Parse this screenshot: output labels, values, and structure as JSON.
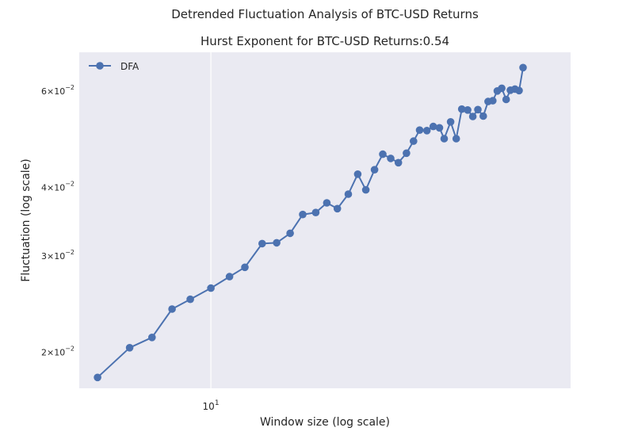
{
  "chart_data": {
    "type": "line",
    "suptitle": "Detrended Fluctuation Analysis of BTC-USD Returns",
    "title": "Hurst Exponent for BTC-USD Returns:0.54",
    "xlabel": "Window size (log scale)",
    "ylabel": "Fluctuation (log scale)",
    "xscale": "log",
    "yscale": "log",
    "xlim": [
      5.1,
      63
    ],
    "ylim": [
      0.0172,
      0.0706
    ],
    "x_ticks": [
      {
        "value": 10,
        "base": "10",
        "exp": "1"
      }
    ],
    "y_ticks": [
      {
        "value": 0.02,
        "mant": "2",
        "exp": "−2"
      },
      {
        "value": 0.03,
        "mant": "3",
        "exp": "−2"
      },
      {
        "value": 0.04,
        "mant": "4",
        "exp": "−2"
      },
      {
        "value": 0.06,
        "mant": "6",
        "exp": "−2"
      }
    ],
    "grid": true,
    "legend_position": "top-left",
    "series": [
      {
        "name": "DFA",
        "color": "#4c72b0",
        "marker": "circle",
        "points": [
          [
            5.6,
            0.018
          ],
          [
            6.6,
            0.0204
          ],
          [
            7.4,
            0.0213
          ],
          [
            8.2,
            0.024
          ],
          [
            9.0,
            0.025
          ],
          [
            10.0,
            0.0262
          ],
          [
            11.0,
            0.0275
          ],
          [
            11.9,
            0.0286
          ],
          [
            13.0,
            0.0316
          ],
          [
            14.0,
            0.0317
          ],
          [
            15.0,
            0.033
          ],
          [
            16.0,
            0.0357
          ],
          [
            17.1,
            0.036
          ],
          [
            18.1,
            0.0375
          ],
          [
            19.1,
            0.0366
          ],
          [
            20.2,
            0.0389
          ],
          [
            21.2,
            0.0423
          ],
          [
            22.1,
            0.0396
          ],
          [
            23.1,
            0.0431
          ],
          [
            24.1,
            0.046
          ],
          [
            25.1,
            0.0452
          ],
          [
            26.1,
            0.0444
          ],
          [
            27.2,
            0.0462
          ],
          [
            28.2,
            0.0486
          ],
          [
            29.1,
            0.0509
          ],
          [
            30.2,
            0.0508
          ],
          [
            31.2,
            0.0517
          ],
          [
            32.2,
            0.0514
          ],
          [
            33.0,
            0.0491
          ],
          [
            34.1,
            0.0527
          ],
          [
            35.1,
            0.0491
          ],
          [
            36.1,
            0.0556
          ],
          [
            37.2,
            0.0554
          ],
          [
            38.2,
            0.0539
          ],
          [
            39.2,
            0.0555
          ],
          [
            40.3,
            0.054
          ],
          [
            41.3,
            0.0574
          ],
          [
            42.3,
            0.0576
          ],
          [
            43.3,
            0.06
          ],
          [
            44.3,
            0.0607
          ],
          [
            45.3,
            0.0579
          ],
          [
            46.3,
            0.0602
          ],
          [
            47.4,
            0.0605
          ],
          [
            48.4,
            0.0601
          ],
          [
            49.4,
            0.0662
          ]
        ]
      }
    ]
  }
}
